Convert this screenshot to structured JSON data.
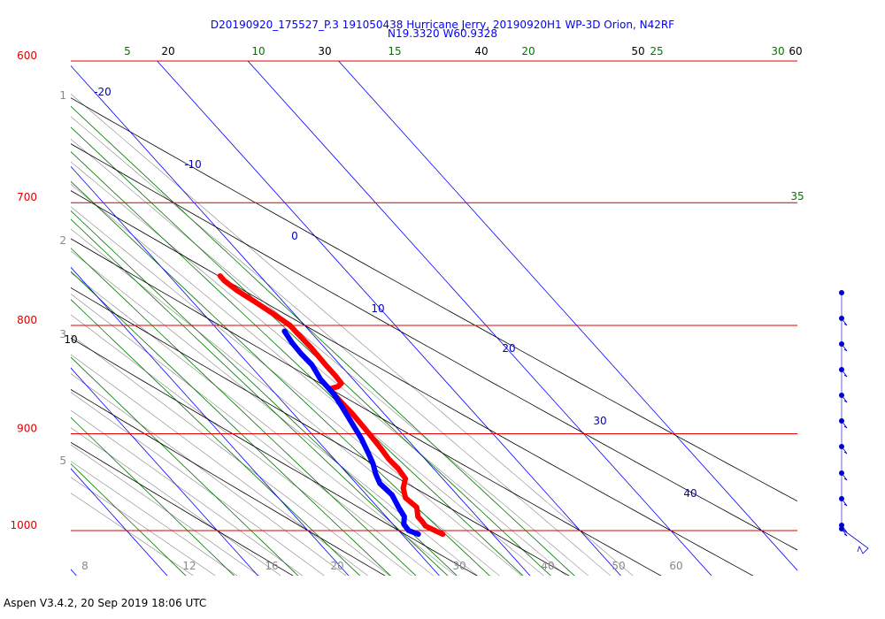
{
  "header": {
    "title_line1": "D20190920_175527_P.3 191050438 Hurricane Jerry, 20190920H1 WP-3D Orion, N42RF",
    "title_line2": "N19.3320 W60.9328"
  },
  "footer": {
    "text": "Aspen V3.4.2, 20 Sep 2019  18:06 UTC"
  },
  "chart_data": {
    "type": "line",
    "diagram": "skew-T log-P",
    "pressure_range_hpa": [
      600,
      1000
    ],
    "temperature_range_c": [
      -20,
      40
    ],
    "isobars": [
      "600",
      "700",
      "800",
      "900",
      "1000"
    ],
    "height_labels_km": [
      "1",
      "2",
      "3",
      "5"
    ],
    "isotherm_labels": [
      "-20",
      "-10",
      "0",
      "10",
      "20",
      "30",
      "40"
    ],
    "dry_adiabat_labels_top": [
      "20",
      "30",
      "40",
      "50",
      "60"
    ],
    "dry_adiabat_label_left": "10",
    "mixing_ratio_labels_top": [
      "5",
      "10",
      "15",
      "20",
      "25",
      "30"
    ],
    "mixing_ratio_label_right": "35",
    "bottom_axis_labels": [
      "8",
      "12",
      "16",
      "20",
      "30",
      "40",
      "50",
      "60"
    ],
    "series": [
      {
        "variable": "temperature",
        "color": "#ff0000",
        "points": [
          {
            "p": 1004,
            "t": 24.5
          },
          {
            "p": 1000,
            "t": 24.0
          },
          {
            "p": 995,
            "t": 23.4
          },
          {
            "p": 990,
            "t": 23.5
          },
          {
            "p": 985,
            "t": 23.5
          },
          {
            "p": 975,
            "t": 24.3
          },
          {
            "p": 965,
            "t": 24.0
          },
          {
            "p": 955,
            "t": 24.7
          },
          {
            "p": 945,
            "t": 25.9
          },
          {
            "p": 935,
            "t": 26.1
          },
          {
            "p": 925,
            "t": 26.0
          },
          {
            "p": 915,
            "t": 26.2
          },
          {
            "p": 905,
            "t": 26.3
          },
          {
            "p": 895,
            "t": 26.4
          },
          {
            "p": 880,
            "t": 26.5
          },
          {
            "p": 868,
            "t": 26.4
          },
          {
            "p": 862,
            "t": 26.4
          },
          {
            "p": 857,
            "t": 26.5
          },
          {
            "p": 855,
            "t": 27.6
          },
          {
            "p": 852,
            "t": 28.3
          },
          {
            "p": 845,
            "t": 28.4
          },
          {
            "p": 835,
            "t": 28.4
          },
          {
            "p": 820,
            "t": 28.5
          },
          {
            "p": 805,
            "t": 28.4
          },
          {
            "p": 800,
            "t": 28.4
          },
          {
            "p": 790,
            "t": 27.7
          },
          {
            "p": 780,
            "t": 26.9
          },
          {
            "p": 770,
            "t": 26.0
          },
          {
            "p": 762,
            "t": 25.6
          },
          {
            "p": 758,
            "t": 25.6
          }
        ]
      },
      {
        "variable": "dewpoint",
        "color": "#0000ff",
        "points": [
          {
            "p": 1004,
            "t": 21.8
          },
          {
            "p": 1000,
            "t": 21.1
          },
          {
            "p": 993,
            "t": 21.2
          },
          {
            "p": 985,
            "t": 22.0
          },
          {
            "p": 975,
            "t": 22.3
          },
          {
            "p": 962,
            "t": 22.8
          },
          {
            "p": 950,
            "t": 22.6
          },
          {
            "p": 940,
            "t": 23.1
          },
          {
            "p": 930,
            "t": 23.8
          },
          {
            "p": 920,
            "t": 24.3
          },
          {
            "p": 905,
            "t": 25.0
          },
          {
            "p": 890,
            "t": 25.5
          },
          {
            "p": 875,
            "t": 26.0
          },
          {
            "p": 862,
            "t": 26.4
          },
          {
            "p": 853,
            "t": 26.4
          },
          {
            "p": 848,
            "t": 26.4
          },
          {
            "p": 843,
            "t": 26.6
          },
          {
            "p": 835,
            "t": 26.9
          },
          {
            "p": 825,
            "t": 26.8
          },
          {
            "p": 815,
            "t": 26.9
          },
          {
            "p": 805,
            "t": 27.2
          }
        ]
      }
    ]
  }
}
